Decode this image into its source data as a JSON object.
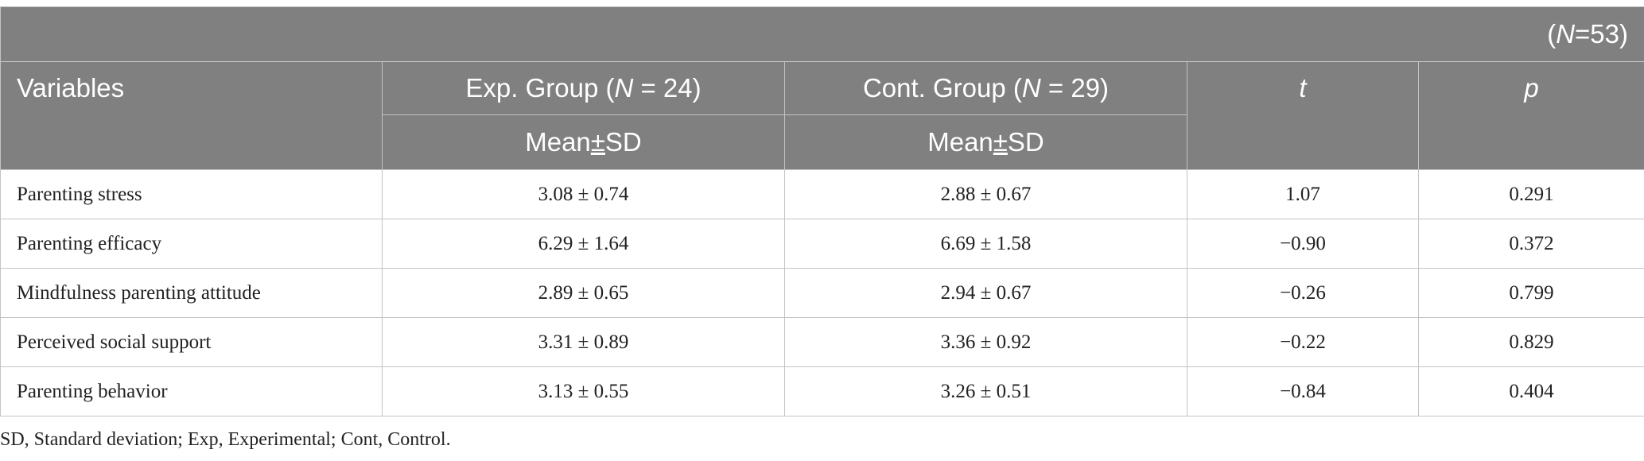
{
  "table": {
    "n_label": "(N=53)",
    "n_prefix": "(",
    "n_letter": "N",
    "n_suffix": "=53)",
    "headers": {
      "variables": "Variables",
      "exp_group_prefix": "Exp. Group (",
      "exp_group_letter": "N",
      "exp_group_suffix": " = 24)",
      "cont_group_prefix": "Cont. Group (",
      "cont_group_letter": "N",
      "cont_group_suffix": " = 29)",
      "t": "t",
      "p": "p",
      "exp_sub_mean": "Mean",
      "exp_sub_pm": "±",
      "exp_sub_sd": "SD",
      "cont_sub_mean": "Mean",
      "cont_sub_pm": "±",
      "cont_sub_sd": "SD"
    },
    "rows": [
      {
        "variable": "Parenting stress",
        "exp": "3.08 ± 0.74",
        "cont": "2.88 ± 0.67",
        "t": "1.07",
        "p": "0.291"
      },
      {
        "variable": "Parenting efficacy",
        "exp": "6.29 ± 1.64",
        "cont": "6.69 ± 1.58",
        "t": "−0.90",
        "p": "0.372"
      },
      {
        "variable": "Mindfulness parenting attitude",
        "exp": "2.89 ± 0.65",
        "cont": "2.94 ± 0.67",
        "t": "−0.26",
        "p": "0.799"
      },
      {
        "variable": "Perceived social support",
        "exp": "3.31 ± 0.89",
        "cont": "3.36 ± 0.92",
        "t": "−0.22",
        "p": "0.829"
      },
      {
        "variable": "Parenting behavior",
        "exp": "3.13 ± 0.55",
        "cont": "3.26 ± 0.51",
        "t": "−0.84",
        "p": "0.404"
      }
    ]
  },
  "footnote": "SD, Standard deviation; Exp, Experimental; Cont, Control."
}
